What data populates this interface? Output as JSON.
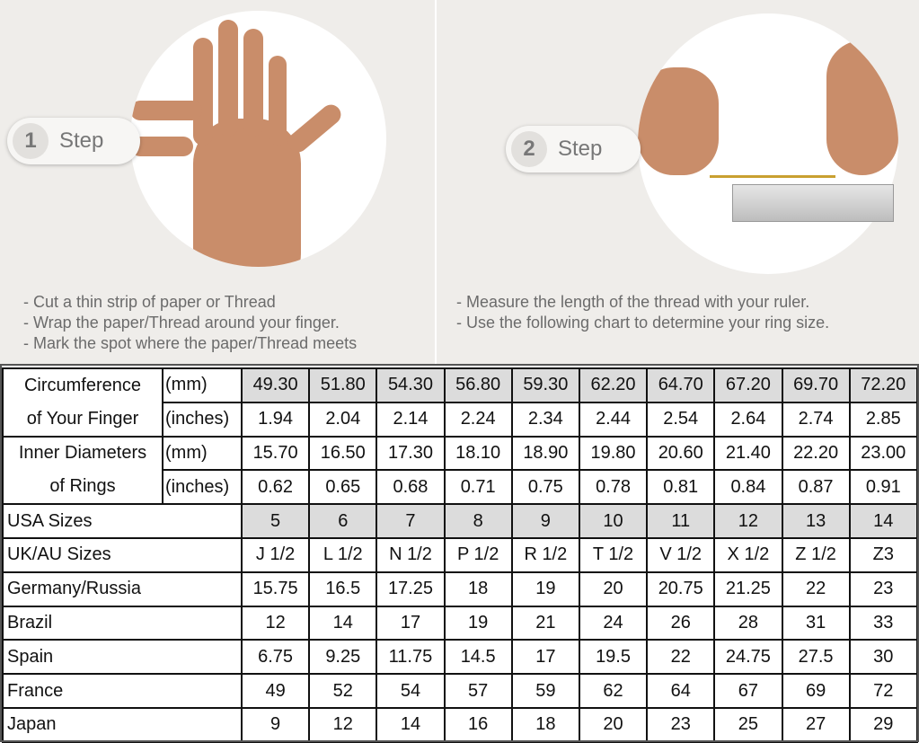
{
  "step1": {
    "number": "1",
    "label": "Step",
    "notes": [
      "- Cut a thin strip of paper or Thread",
      "- Wrap the paper/Thread around your finger.",
      "- Mark the spot where the paper/Thread meets"
    ]
  },
  "step2": {
    "number": "2",
    "label": "Step",
    "notes": [
      "- Measure the length of the thread with your ruler.",
      "- Use the following chart to determine your ring size."
    ]
  },
  "table": {
    "circumference": {
      "label1": "Circumference",
      "label2": "of Your Finger",
      "unit_mm": "(mm)",
      "unit_in": "(inches)",
      "mm": [
        "49.30",
        "51.80",
        "54.30",
        "56.80",
        "59.30",
        "62.20",
        "64.70",
        "67.20",
        "69.70",
        "72.20"
      ],
      "inches": [
        "1.94",
        "2.04",
        "2.14",
        "2.24",
        "2.34",
        "2.44",
        "2.54",
        "2.64",
        "2.74",
        "2.85"
      ]
    },
    "diameter": {
      "label1": "Inner Diameters",
      "label2": "of Rings",
      "unit_mm": "(mm)",
      "unit_in": "(inches)",
      "mm": [
        "15.70",
        "16.50",
        "17.30",
        "18.10",
        "18.90",
        "19.80",
        "20.60",
        "21.40",
        "22.20",
        "23.00"
      ],
      "inches": [
        "0.62",
        "0.65",
        "0.68",
        "0.71",
        "0.75",
        "0.78",
        "0.81",
        "0.84",
        "0.87",
        "0.91"
      ]
    },
    "rows": [
      {
        "label": "USA Sizes",
        "values": [
          "5",
          "6",
          "7",
          "8",
          "9",
          "10",
          "11",
          "12",
          "13",
          "14"
        ]
      },
      {
        "label": "UK/AU Sizes",
        "values": [
          "J 1/2",
          "L 1/2",
          "N 1/2",
          "P 1/2",
          "R 1/2",
          "T 1/2",
          "V 1/2",
          "X 1/2",
          "Z 1/2",
          "Z3"
        ]
      },
      {
        "label": "Germany/Russia",
        "values": [
          "15.75",
          "16.5",
          "17.25",
          "18",
          "19",
          "20",
          "20.75",
          "21.25",
          "22",
          "23"
        ]
      },
      {
        "label": "Brazil",
        "values": [
          "12",
          "14",
          "17",
          "19",
          "21",
          "24",
          "26",
          "28",
          "31",
          "33"
        ]
      },
      {
        "label": "Spain",
        "values": [
          "6.75",
          "9.25",
          "11.75",
          "14.5",
          "17",
          "19.5",
          "22",
          "24.75",
          "27.5",
          "30"
        ]
      },
      {
        "label": "France",
        "values": [
          "49",
          "52",
          "54",
          "57",
          "59",
          "62",
          "64",
          "67",
          "69",
          "72"
        ]
      },
      {
        "label": "Japan",
        "values": [
          "9",
          "12",
          "14",
          "16",
          "18",
          "20",
          "23",
          "25",
          "27",
          "29"
        ]
      }
    ]
  }
}
